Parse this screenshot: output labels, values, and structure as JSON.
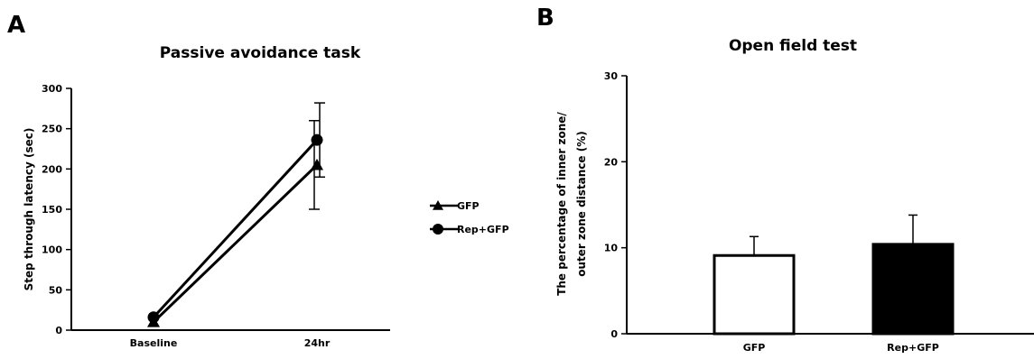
{
  "chart_data": [
    {
      "panel": "A",
      "type": "line",
      "title": "Passive avoidance task",
      "xlabel": "",
      "ylabel": "Step through latency (sec)",
      "categories": [
        "Baseline",
        "24hr"
      ],
      "ylim": [
        0,
        300
      ],
      "yticks": [
        0,
        50,
        100,
        150,
        200,
        250,
        300
      ],
      "series": [
        {
          "name": "GFP",
          "marker": "triangle",
          "values": [
            10,
            205
          ],
          "errors": [
            0,
            55
          ]
        },
        {
          "name": "Rep+GFP",
          "marker": "circle",
          "values": [
            16,
            236
          ],
          "errors": [
            0,
            46
          ]
        }
      ],
      "legend": "right"
    },
    {
      "panel": "B",
      "type": "bar",
      "title": "Open field test",
      "xlabel": "",
      "ylabel_lines": [
        "The percentage of inner zone/",
        "outer zone distance (%)"
      ],
      "categories": [
        "GFP",
        "Rep+GFP"
      ],
      "values": [
        9.1,
        10.4
      ],
      "errors": [
        2.2,
        3.4
      ],
      "fills": [
        "#ffffff",
        "#000000"
      ],
      "ylim": [
        0,
        30
      ],
      "yticks": [
        0,
        10,
        20,
        30
      ]
    }
  ]
}
